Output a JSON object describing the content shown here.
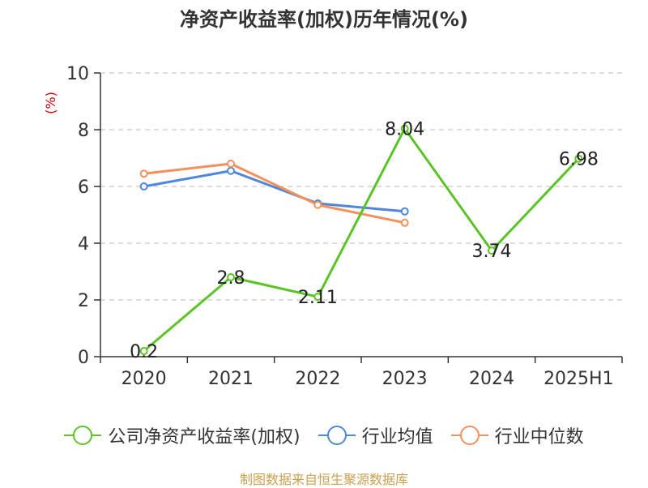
{
  "chart_data": {
    "type": "line",
    "title": "净资产收益率(加权)历年情况(%)",
    "unit_label": "(%)",
    "categories": [
      "2020",
      "2021",
      "2022",
      "2023",
      "2024",
      "2025H1"
    ],
    "y_ticks": [
      "0",
      "2",
      "4",
      "6",
      "8",
      "10"
    ],
    "ylim": [
      0,
      10
    ],
    "grid": true,
    "legend_position": "bottom",
    "series": [
      {
        "name": "公司净资产收益率(加权)",
        "color": "#5bc424",
        "values": [
          0.2,
          2.8,
          2.11,
          8.04,
          3.74,
          6.98
        ],
        "labels": [
          "0.2",
          "2.8",
          "2.11",
          "8.04",
          "3.74",
          "6.98"
        ]
      },
      {
        "name": "行业均值",
        "color": "#4f86db",
        "values": [
          6.0,
          6.55,
          5.4,
          5.12,
          null,
          null
        ]
      },
      {
        "name": "行业中位数",
        "color": "#f5905a",
        "values": [
          6.45,
          6.8,
          5.35,
          4.72,
          null,
          null
        ]
      }
    ]
  },
  "footer": "制图数据来自恒生聚源数据库"
}
